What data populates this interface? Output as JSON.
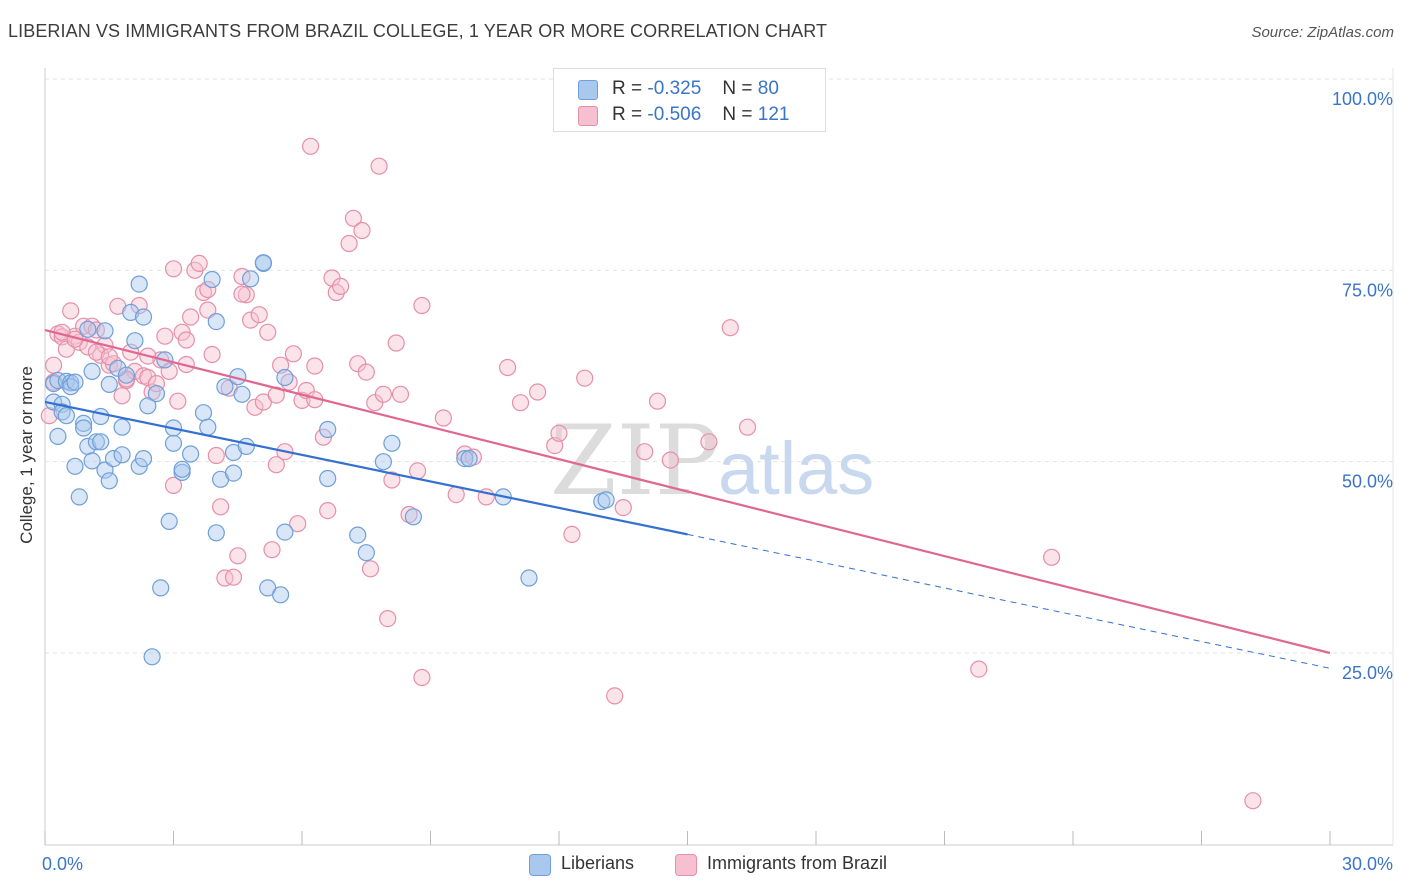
{
  "title": "LIBERIAN VS IMMIGRANTS FROM BRAZIL COLLEGE, 1 YEAR OR MORE CORRELATION CHART",
  "source": "Source: ZipAtlas.com",
  "watermark": {
    "zip": "ZIP",
    "atlas": "atlas"
  },
  "legend": {
    "rows": [
      {
        "r_label": "R =",
        "r_value": "-0.325",
        "n_label": "N =",
        "n_value": "80",
        "color": "#a9c8ee",
        "border": "#6f9fd8"
      },
      {
        "r_label": "R =",
        "r_value": "-0.506",
        "n_label": "N =",
        "n_value": "121",
        "color": "#f6c0d1",
        "border": "#e68fab"
      }
    ]
  },
  "bottom_legend": {
    "liberians": "Liberians",
    "brazil": "Immigrants from Brazil"
  },
  "chart_data": {
    "type": "scatter",
    "ylabel": "College, 1 year or more",
    "xlim": [
      0,
      30
    ],
    "ylim": [
      0,
      105
    ],
    "x_tick_labels": {
      "left": "0.0%",
      "right": "30.0%"
    },
    "y_ticks": [
      {
        "value": 25,
        "label": "25.0%"
      },
      {
        "value": 50,
        "label": "50.0%"
      },
      {
        "value": 75,
        "label": "75.0%"
      },
      {
        "value": 100,
        "label": "100.0%"
      }
    ],
    "grid": true,
    "series": [
      {
        "name": "Liberians",
        "color": "#6f9fd8",
        "fill": "#a9c8ee",
        "line_color": "#3370d0",
        "trend": {
          "x0": 0.0,
          "y0": 57.8,
          "x1": 15.0,
          "y1": 40.5,
          "dash_to_x": 30.0,
          "dash_to_y": 23.0
        },
        "points": [
          [
            0.2,
            60.2
          ],
          [
            0.2,
            57.8
          ],
          [
            0.3,
            60.6
          ],
          [
            0.3,
            53.3
          ],
          [
            0.4,
            57.5
          ],
          [
            0.4,
            56.5
          ],
          [
            0.5,
            56.0
          ],
          [
            0.5,
            60.5
          ],
          [
            0.6,
            60.3
          ],
          [
            0.6,
            59.8
          ],
          [
            0.7,
            60.4
          ],
          [
            0.7,
            49.4
          ],
          [
            0.8,
            45.4
          ],
          [
            0.9,
            55.0
          ],
          [
            0.9,
            54.4
          ],
          [
            1.0,
            67.3
          ],
          [
            1.0,
            52.0
          ],
          [
            1.1,
            50.1
          ],
          [
            1.1,
            61.8
          ],
          [
            1.2,
            52.6
          ],
          [
            1.3,
            52.6
          ],
          [
            1.3,
            55.9
          ],
          [
            1.4,
            67.1
          ],
          [
            1.4,
            48.9
          ],
          [
            1.5,
            47.5
          ],
          [
            1.5,
            60.1
          ],
          [
            1.6,
            50.4
          ],
          [
            1.7,
            62.2
          ],
          [
            1.8,
            50.9
          ],
          [
            1.8,
            54.5
          ],
          [
            1.9,
            61.3
          ],
          [
            2.0,
            69.5
          ],
          [
            2.1,
            65.8
          ],
          [
            2.2,
            49.4
          ],
          [
            2.2,
            73.2
          ],
          [
            2.3,
            50.4
          ],
          [
            2.3,
            68.9
          ],
          [
            2.4,
            57.3
          ],
          [
            2.5,
            24.5
          ],
          [
            2.6,
            58.9
          ],
          [
            2.7,
            33.5
          ],
          [
            2.8,
            63.3
          ],
          [
            2.9,
            42.2
          ],
          [
            3.0,
            52.4
          ],
          [
            3.0,
            54.4
          ],
          [
            3.2,
            48.6
          ],
          [
            3.2,
            49.0
          ],
          [
            3.4,
            51.0
          ],
          [
            3.7,
            56.4
          ],
          [
            3.8,
            54.5
          ],
          [
            3.9,
            73.8
          ],
          [
            4.0,
            68.3
          ],
          [
            4.0,
            40.7
          ],
          [
            4.1,
            47.7
          ],
          [
            4.2,
            59.8
          ],
          [
            4.4,
            51.2
          ],
          [
            4.4,
            48.5
          ],
          [
            4.5,
            61.1
          ],
          [
            4.6,
            58.8
          ],
          [
            4.7,
            52.0
          ],
          [
            4.8,
            73.9
          ],
          [
            5.1,
            75.9
          ],
          [
            5.1,
            76.0
          ],
          [
            5.2,
            33.5
          ],
          [
            5.5,
            32.6
          ],
          [
            5.6,
            40.8
          ],
          [
            5.6,
            61.0
          ],
          [
            6.6,
            54.2
          ],
          [
            6.6,
            47.8
          ],
          [
            7.3,
            40.4
          ],
          [
            7.5,
            38.1
          ],
          [
            7.9,
            50.0
          ],
          [
            8.1,
            52.4
          ],
          [
            8.6,
            42.8
          ],
          [
            9.8,
            50.4
          ],
          [
            9.9,
            50.4
          ],
          [
            10.7,
            45.4
          ],
          [
            11.3,
            34.8
          ],
          [
            13.0,
            44.8
          ],
          [
            13.1,
            45.0
          ]
        ]
      },
      {
        "name": "Immigrants from Brazil",
        "color": "#e68fab",
        "fill": "#f6c0d1",
        "line_color": "#e06791",
        "trend": {
          "x0": 0.0,
          "y0": 67.2,
          "x1": 30.0,
          "y1": 25.0
        },
        "points": [
          [
            0.1,
            56.0
          ],
          [
            0.2,
            62.6
          ],
          [
            0.3,
            66.7
          ],
          [
            0.4,
            66.3
          ],
          [
            0.5,
            64.7
          ],
          [
            0.6,
            69.7
          ],
          [
            0.7,
            66.4
          ],
          [
            0.8,
            65.6
          ],
          [
            0.9,
            67.7
          ],
          [
            1.0,
            65.0
          ],
          [
            1.1,
            67.7
          ],
          [
            1.2,
            67.2
          ],
          [
            1.3,
            63.9
          ],
          [
            1.4,
            65.2
          ],
          [
            1.5,
            62.6
          ],
          [
            1.6,
            62.8
          ],
          [
            1.7,
            70.3
          ],
          [
            1.8,
            58.6
          ],
          [
            1.9,
            60.6
          ],
          [
            2.0,
            64.3
          ],
          [
            2.1,
            61.8
          ],
          [
            2.2,
            70.4
          ],
          [
            2.3,
            61.2
          ],
          [
            2.4,
            61.0
          ],
          [
            2.5,
            59.1
          ],
          [
            2.6,
            60.2
          ],
          [
            2.7,
            63.3
          ],
          [
            2.8,
            66.4
          ],
          [
            3.0,
            75.2
          ],
          [
            3.0,
            46.9
          ],
          [
            3.1,
            57.9
          ],
          [
            3.2,
            66.9
          ],
          [
            3.3,
            62.7
          ],
          [
            3.4,
            68.9
          ],
          [
            3.5,
            75.0
          ],
          [
            3.6,
            75.9
          ],
          [
            3.7,
            72.1
          ],
          [
            3.8,
            69.8
          ],
          [
            3.9,
            64.0
          ],
          [
            4.0,
            50.8
          ],
          [
            4.1,
            44.1
          ],
          [
            4.2,
            34.8
          ],
          [
            4.3,
            59.6
          ],
          [
            4.4,
            34.9
          ],
          [
            4.5,
            37.7
          ],
          [
            4.6,
            74.2
          ],
          [
            4.7,
            71.8
          ],
          [
            4.8,
            68.5
          ],
          [
            4.9,
            57.1
          ],
          [
            5.0,
            69.2
          ],
          [
            5.1,
            57.8
          ],
          [
            5.2,
            66.9
          ],
          [
            5.3,
            38.5
          ],
          [
            5.4,
            49.6
          ],
          [
            5.5,
            62.6
          ],
          [
            5.6,
            51.3
          ],
          [
            5.7,
            60.4
          ],
          [
            5.8,
            64.1
          ],
          [
            5.9,
            41.9
          ],
          [
            6.0,
            58.0
          ],
          [
            6.1,
            59.3
          ],
          [
            6.2,
            91.2
          ],
          [
            6.3,
            62.5
          ],
          [
            6.5,
            53.2
          ],
          [
            6.6,
            43.6
          ],
          [
            6.7,
            74.0
          ],
          [
            6.8,
            72.1
          ],
          [
            6.9,
            72.9
          ],
          [
            7.1,
            78.5
          ],
          [
            7.2,
            81.8
          ],
          [
            7.3,
            62.8
          ],
          [
            7.4,
            80.2
          ],
          [
            7.5,
            61.7
          ],
          [
            7.6,
            36.0
          ],
          [
            7.7,
            57.7
          ],
          [
            7.8,
            88.6
          ],
          [
            7.9,
            58.8
          ],
          [
            8.0,
            29.5
          ],
          [
            8.1,
            47.6
          ],
          [
            8.2,
            65.5
          ],
          [
            8.3,
            58.8
          ],
          [
            8.5,
            43.1
          ],
          [
            8.7,
            48.8
          ],
          [
            8.8,
            70.4
          ],
          [
            8.8,
            21.8
          ],
          [
            9.3,
            55.7
          ],
          [
            9.6,
            45.7
          ],
          [
            9.8,
            51.0
          ],
          [
            10.0,
            50.6
          ],
          [
            10.3,
            45.4
          ],
          [
            10.8,
            62.3
          ],
          [
            11.1,
            57.7
          ],
          [
            11.5,
            59.1
          ],
          [
            11.9,
            52.1
          ],
          [
            12.0,
            53.7
          ],
          [
            12.3,
            40.5
          ],
          [
            12.6,
            60.9
          ],
          [
            13.3,
            19.4
          ],
          [
            13.5,
            44.0
          ],
          [
            14.0,
            51.3
          ],
          [
            14.3,
            57.9
          ],
          [
            14.6,
            50.2
          ],
          [
            15.5,
            52.6
          ],
          [
            16.0,
            67.5
          ],
          [
            16.4,
            54.5
          ],
          [
            21.8,
            22.9
          ],
          [
            23.5,
            37.5
          ],
          [
            28.2,
            5.7
          ],
          [
            0.2,
            60.4
          ],
          [
            0.4,
            66.9
          ],
          [
            0.7,
            66.0
          ],
          [
            1.2,
            64.3
          ],
          [
            1.5,
            63.7
          ],
          [
            1.9,
            60.8
          ],
          [
            2.4,
            63.8
          ],
          [
            2.9,
            61.8
          ],
          [
            3.3,
            65.9
          ],
          [
            3.8,
            72.5
          ],
          [
            4.6,
            71.9
          ],
          [
            5.4,
            58.7
          ],
          [
            6.3,
            58.1
          ]
        ]
      }
    ]
  }
}
